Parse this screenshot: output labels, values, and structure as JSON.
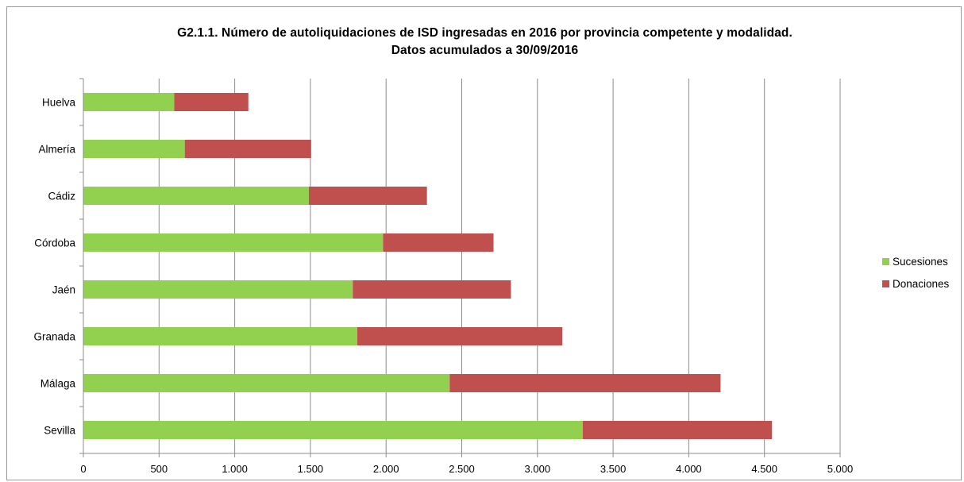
{
  "chart_data": {
    "type": "bar",
    "orientation": "horizontal",
    "stacked": true,
    "title_line1": "G2.1.1. Número de autoliquidaciones de ISD ingresadas en 2016 por provincia competente y modalidad.",
    "title_line2": "Datos acumulados a 30/09/2016",
    "categories": [
      "Sevilla",
      "Málaga",
      "Granada",
      "Jaén",
      "Córdoba",
      "Cádiz",
      "Almería",
      "Huelva"
    ],
    "series": [
      {
        "name": "Sucesiones",
        "color": "#92d050",
        "values": [
          3300,
          2420,
          1810,
          1780,
          1980,
          1490,
          670,
          600
        ]
      },
      {
        "name": "Donaciones",
        "color": "#c0504d",
        "values": [
          1250,
          1790,
          1355,
          1045,
          730,
          780,
          835,
          490
        ]
      }
    ],
    "xlim": [
      0,
      5000
    ],
    "xticks": [
      0,
      500,
      1000,
      1500,
      2000,
      2500,
      3000,
      3500,
      4000,
      4500,
      5000
    ],
    "xtick_labels": [
      "0",
      "500",
      "1.000",
      "1.500",
      "2.000",
      "2.500",
      "3.000",
      "3.500",
      "4.000",
      "4.500",
      "5.000"
    ],
    "grid": true,
    "legend_position": "right"
  }
}
